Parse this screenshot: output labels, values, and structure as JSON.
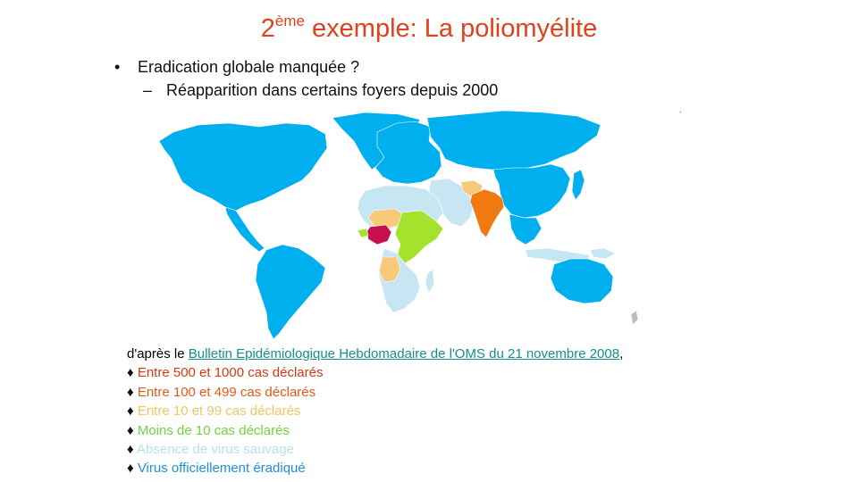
{
  "title": {
    "main": "2",
    "superscript": "ème",
    "rest": " exemple:  La poliomyélite"
  },
  "bullets": [
    {
      "marker": "•",
      "text": "Eradication globale manquée ?"
    },
    {
      "marker": "–",
      "text": "Réapparition dans certains foyers depuis 2000"
    }
  ],
  "stray_mark": ".",
  "source": {
    "prefix": "d'après le ",
    "link_text": "Bulletin Epidémiologique Hebdomadaire de l'OMS du 21 novembre 2008",
    "suffix": ","
  },
  "legend": [
    {
      "marker": "♦",
      "label": "Entre 500 et 1000 cas déclarés",
      "color": "#d63a10"
    },
    {
      "marker": "♦",
      "label": "Entre 100 et 499 cas déclarés",
      "color": "#e25a16"
    },
    {
      "marker": "♦",
      "label": "Entre 10 et 99 cas déclarés",
      "color": "#f3c462"
    },
    {
      "marker": "♦",
      "label": "Moins de 10 cas déclarés",
      "color": "#6fd63a"
    },
    {
      "marker": "♦",
      "label": "Absence de virus sauvage",
      "color": "#b9dfee"
    },
    {
      "marker": "♦",
      "label": "Virus officiellement éradiqué",
      "color": "#1f8ee0"
    }
  ],
  "map_colors": {
    "eradicated": "#00b0ee",
    "absent": "#c6e6f3",
    "lt10": "#a5e22b",
    "r10_99": "#f7c978",
    "r100_499": "#f07a10",
    "r500_1000": "#c8104f",
    "unknown": "#bdbdbd"
  }
}
